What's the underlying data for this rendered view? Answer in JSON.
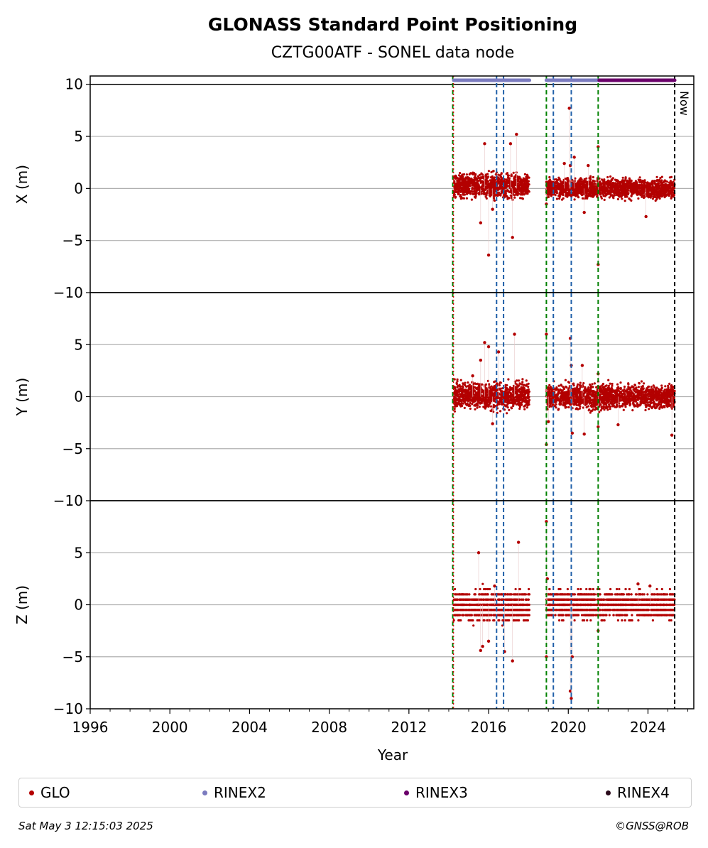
{
  "colors": {
    "glo": "#b30000",
    "rinex2": "#7b7bbf",
    "rinex3": "#6a006a",
    "rinex4": "#2a0a1a",
    "event_green": "#008000",
    "event_blue": "#1f5fa8",
    "grid": "#b0b0b0"
  },
  "footer": {
    "timestamp": "Sat May  3 12:15:03 2025",
    "credit": "©GNSS@ROB"
  },
  "chart_data": {
    "type": "scatter",
    "title": "GLONASS Standard Point Positioning",
    "subtitle": "CZTG00ATF - SONEL data node",
    "xlabel": "Year",
    "xlim": [
      1996,
      2026.3
    ],
    "xticks": [
      1996,
      2000,
      2004,
      2008,
      2012,
      2016,
      2020,
      2024
    ],
    "grid": true,
    "legend_placement": "bottom",
    "legend": [
      "GLO",
      "RINEX2",
      "RINEX3",
      "RINEX4"
    ],
    "now_label": "Now",
    "now_year": 2025.34,
    "event_lines": {
      "green": [
        2014.2,
        2018.9,
        2021.5
      ],
      "blue": [
        2016.4,
        2016.75,
        2019.25,
        2020.15
      ],
      "red_dotted": [
        2014.2
      ]
    },
    "data_spans": [
      [
        2014.25,
        2018.05
      ],
      [
        2018.9,
        2025.34
      ]
    ],
    "rinex_bars": [
      {
        "name": "RINEX2",
        "spans": [
          [
            2014.25,
            2018.05
          ],
          [
            2018.9,
            2021.55
          ]
        ]
      },
      {
        "name": "RINEX3",
        "spans": [
          [
            2021.55,
            2025.34
          ]
        ]
      }
    ],
    "panels": [
      {
        "ylabel": "X (m)",
        "ylim": [
          -10,
          10.8
        ],
        "yticks": [
          10,
          5,
          0,
          -5,
          -10
        ],
        "ytick_labels": [
          "10",
          "5",
          "0",
          "−5",
          "−10"
        ],
        "series": [
          {
            "name": "GLO",
            "band_sd": [
              0.55,
              0.45
            ],
            "band_mean": [
              0.25,
              0.0
            ]
          }
        ],
        "outliers": [
          [
            2015.6,
            -3.3
          ],
          [
            2015.8,
            4.3
          ],
          [
            2016.0,
            -6.4
          ],
          [
            2016.2,
            -2.0
          ],
          [
            2017.1,
            4.3
          ],
          [
            2017.2,
            -4.7
          ],
          [
            2017.4,
            5.2
          ],
          [
            2018.9,
            -1.5
          ],
          [
            2019.8,
            2.4
          ],
          [
            2020.05,
            7.7
          ],
          [
            2020.1,
            2.2
          ],
          [
            2020.3,
            3.0
          ],
          [
            2020.8,
            -2.3
          ],
          [
            2021.0,
            2.2
          ],
          [
            2021.5,
            4.0
          ],
          [
            2021.5,
            -7.3
          ],
          [
            2023.9,
            -2.7
          ]
        ]
      },
      {
        "ylabel": "Y (m)",
        "ylim": [
          -10,
          10
        ],
        "yticks": [
          5,
          0,
          -5,
          -10
        ],
        "ytick_labels": [
          "5",
          "0",
          "−5",
          "−10"
        ],
        "series": [
          {
            "name": "GLO",
            "band_sd": [
              0.6,
              0.55
            ],
            "band_mean": [
              0.1,
              0.0
            ]
          }
        ],
        "outliers": [
          [
            2015.2,
            2.0
          ],
          [
            2015.6,
            3.5
          ],
          [
            2015.8,
            5.2
          ],
          [
            2016.0,
            4.8
          ],
          [
            2016.2,
            -2.6
          ],
          [
            2016.5,
            4.3
          ],
          [
            2017.3,
            6.0
          ],
          [
            2018.9,
            6.0
          ],
          [
            2018.9,
            -4.6
          ],
          [
            2019.0,
            -2.4
          ],
          [
            2020.1,
            5.6
          ],
          [
            2020.15,
            3.0
          ],
          [
            2020.2,
            -3.5
          ],
          [
            2020.7,
            3.0
          ],
          [
            2020.8,
            -3.6
          ],
          [
            2021.5,
            2.2
          ],
          [
            2021.5,
            -2.9
          ],
          [
            2022.5,
            -2.7
          ],
          [
            2025.2,
            -3.7
          ]
        ]
      },
      {
        "ylabel": "Z (m)",
        "ylim": [
          -10,
          10
        ],
        "yticks": [
          5,
          0,
          -5,
          -10
        ],
        "ytick_labels": [
          "5",
          "0",
          "−5",
          "−10"
        ],
        "series": [
          {
            "name": "GLO",
            "band_sd": [
              0.7,
              0.6
            ],
            "band_mean": [
              -0.1,
              0.0
            ]
          }
        ],
        "outliers": [
          [
            2015.5,
            5.0
          ],
          [
            2015.6,
            -4.4
          ],
          [
            2015.7,
            -4.0
          ],
          [
            2016.0,
            -3.5
          ],
          [
            2016.3,
            1.8
          ],
          [
            2016.8,
            -4.5
          ],
          [
            2017.2,
            -5.4
          ],
          [
            2017.5,
            6.0
          ],
          [
            2018.9,
            8.0
          ],
          [
            2018.9,
            -5.0
          ],
          [
            2018.95,
            2.5
          ],
          [
            2020.1,
            -8.3
          ],
          [
            2020.15,
            -9.0
          ],
          [
            2020.2,
            -5.0
          ],
          [
            2021.5,
            -2.5
          ],
          [
            2023.5,
            2.0
          ],
          [
            2024.1,
            1.8
          ]
        ]
      }
    ]
  }
}
